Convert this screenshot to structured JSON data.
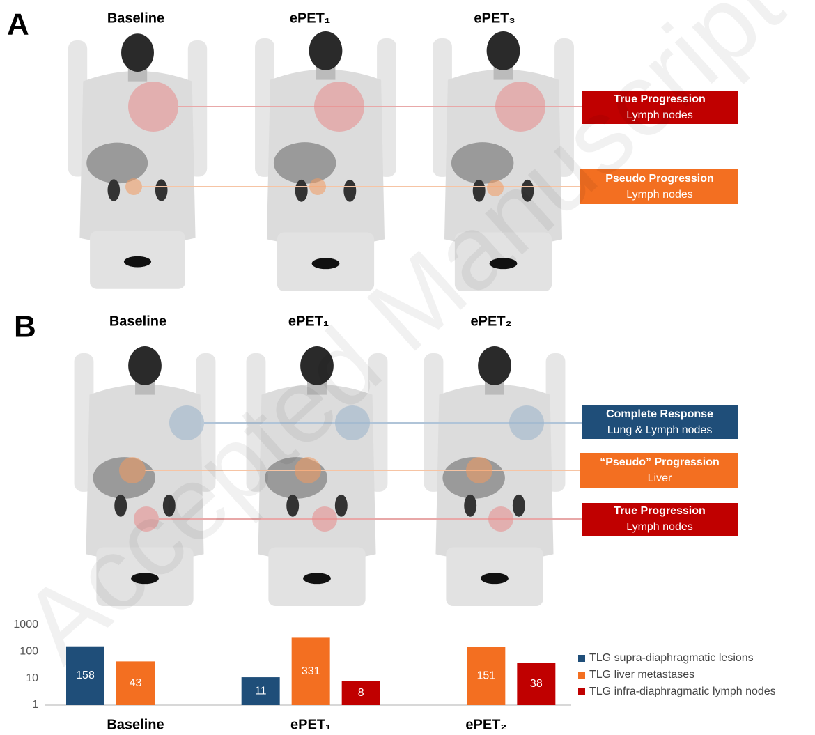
{
  "watermark": "Accepted Manuscript",
  "panels": [
    {
      "label": "A",
      "columns": [
        "Baseline",
        "ePET₁",
        "ePET₃"
      ],
      "annotations": [
        {
          "title": "True Progression",
          "subtitle": "Lymph nodes"
        },
        {
          "title": "Pseudo Progression",
          "subtitle": "Lymph nodes"
        }
      ]
    },
    {
      "label": "B",
      "columns": [
        "Baseline",
        "ePET₁",
        "ePET₂"
      ],
      "annotations": [
        {
          "title": "Complete Response",
          "subtitle": "Lung & Lymph nodes"
        },
        {
          "title": "“Pseudo” Progression",
          "subtitle": "Liver"
        },
        {
          "title": "True Progression",
          "subtitle": "Lymph nodes"
        }
      ]
    }
  ],
  "chart_data": {
    "type": "bar",
    "log_scale": true,
    "categories": [
      "Baseline",
      "ePET₁",
      "ePET₂"
    ],
    "series": [
      {
        "name": "TLG supra-diaphragmatic lesions",
        "color": "#1f4e79",
        "values": [
          158,
          11,
          null
        ]
      },
      {
        "name": "TLG liver metastases",
        "color": "#f36f21",
        "values": [
          43,
          331,
          151
        ]
      },
      {
        "name": "TLG infra-diaphragmatic lymph nodes",
        "color": "#c00000",
        "values": [
          null,
          8,
          38
        ]
      }
    ],
    "ylim": [
      1,
      1000
    ],
    "yticks": [
      1,
      10,
      100,
      1000
    ],
    "grid": false,
    "legend": "right"
  }
}
